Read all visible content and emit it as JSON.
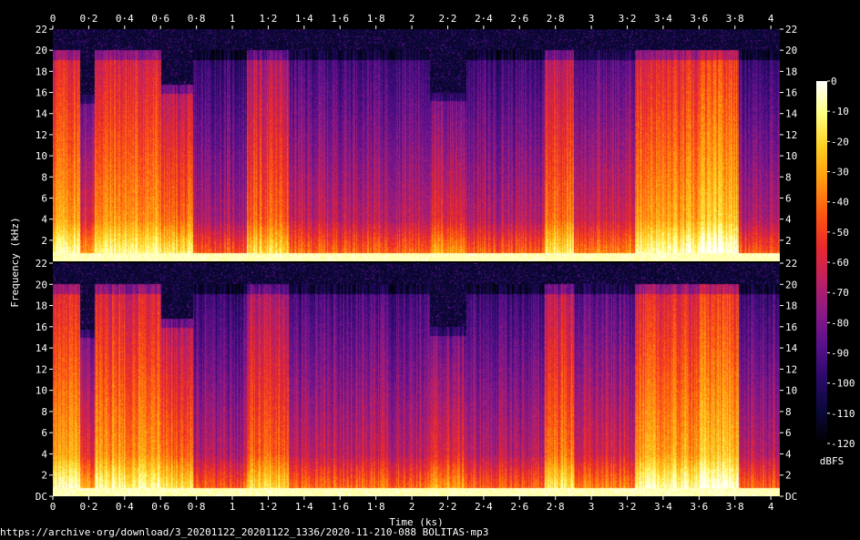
{
  "footer_url": "https://archive·org/download/3_20201122_20201122_1336/2020-11-210-088 BOLITAS·mp3",
  "chart_data": {
    "type": "heatmap",
    "title": "",
    "xlabel": "Time (ks)",
    "ylabel": "Frequency (kHz)",
    "colorbar_label": "dBFS",
    "x_ticks": [
      "0",
      "0·2",
      "0·4",
      "0·6",
      "0·8",
      "1",
      "1·2",
      "1·4",
      "1·6",
      "1·8",
      "2",
      "2·2",
      "2·4",
      "2·6",
      "2·8",
      "3",
      "3·2",
      "3·4",
      "3·6",
      "3·8",
      "4"
    ],
    "x_range": [
      0,
      4.05
    ],
    "channels": [
      {
        "name": "upper",
        "y_ticks": [
          "22",
          "20",
          "18",
          "16",
          "14",
          "12",
          "10",
          "8",
          "6",
          "4",
          "2"
        ]
      },
      {
        "name": "lower",
        "y_ticks": [
          "22",
          "20",
          "18",
          "16",
          "14",
          "12",
          "10",
          "8",
          "6",
          "4",
          "2",
          "DC"
        ]
      }
    ],
    "y_range_khz": [
      0,
      22
    ],
    "colorbar": {
      "ticks": [
        "0",
        "-10",
        "-20",
        "-30",
        "-40",
        "-50",
        "-60",
        "-70",
        "-80",
        "-90",
        "-100",
        "-110",
        "-120"
      ],
      "range": [
        -120,
        0
      ]
    },
    "colors": {
      "c0": "#000000",
      "c1": "#0a0838",
      "c2": "#2a0a6a",
      "c3": "#5a0f8c",
      "c4": "#8a1a86",
      "c5": "#c02060",
      "c6": "#ea2a2a",
      "c7": "#ff5a10",
      "c8": "#ff9a10",
      "c9": "#ffd020",
      "c10": "#ffff80",
      "c11": "#ffffff"
    },
    "segments": [
      {
        "t0": 0.0,
        "t1": 0.15,
        "top_khz": 20.1,
        "level": 0.8
      },
      {
        "t0": 0.15,
        "t1": 0.23,
        "top_khz": 15.8,
        "level": 0.6
      },
      {
        "t0": 0.23,
        "t1": 0.6,
        "top_khz": 20.1,
        "level": 0.78
      },
      {
        "t0": 0.6,
        "t1": 0.78,
        "top_khz": 16.8,
        "level": 0.72
      },
      {
        "t0": 0.78,
        "t1": 1.08,
        "top_khz": 20.1,
        "level": 0.48
      },
      {
        "t0": 1.08,
        "t1": 1.31,
        "top_khz": 20.1,
        "level": 0.7
      },
      {
        "t0": 1.31,
        "t1": 2.1,
        "top_khz": 20.1,
        "level": 0.52
      },
      {
        "t0": 2.1,
        "t1": 2.3,
        "top_khz": 16.0,
        "level": 0.6
      },
      {
        "t0": 2.3,
        "t1": 2.74,
        "top_khz": 20.1,
        "level": 0.5
      },
      {
        "t0": 2.74,
        "t1": 2.9,
        "top_khz": 20.1,
        "level": 0.74
      },
      {
        "t0": 2.9,
        "t1": 3.24,
        "top_khz": 20.1,
        "level": 0.55
      },
      {
        "t0": 3.24,
        "t1": 3.6,
        "top_khz": 20.1,
        "level": 0.8
      },
      {
        "t0": 3.6,
        "t1": 3.82,
        "top_khz": 20.1,
        "level": 0.86
      },
      {
        "t0": 3.82,
        "t1": 4.05,
        "top_khz": 20.1,
        "level": 0.5
      }
    ]
  }
}
